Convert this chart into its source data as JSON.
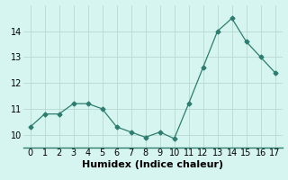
{
  "x": [
    0,
    1,
    2,
    3,
    4,
    5,
    6,
    7,
    8,
    9,
    10,
    11,
    12,
    13,
    14,
    15,
    16,
    17
  ],
  "y": [
    10.3,
    10.8,
    10.8,
    11.2,
    11.2,
    11.0,
    10.3,
    10.1,
    9.9,
    10.1,
    9.85,
    11.2,
    12.6,
    14.0,
    14.5,
    13.6,
    13.0,
    12.4
  ],
  "xlabel": "Humidex (Indice chaleur)",
  "xlim": [
    -0.5,
    17.5
  ],
  "ylim": [
    9.5,
    15.0
  ],
  "yticks": [
    10,
    11,
    12,
    13,
    14
  ],
  "xticks": [
    0,
    1,
    2,
    3,
    4,
    5,
    6,
    7,
    8,
    9,
    10,
    11,
    12,
    13,
    14,
    15,
    16,
    17
  ],
  "line_color": "#2e7d6e",
  "marker": "D",
  "marker_size": 2.5,
  "bg_color": "#d6f5f0",
  "grid_color": "#b8d8d2",
  "xlabel_fontsize": 8,
  "tick_fontsize": 7
}
